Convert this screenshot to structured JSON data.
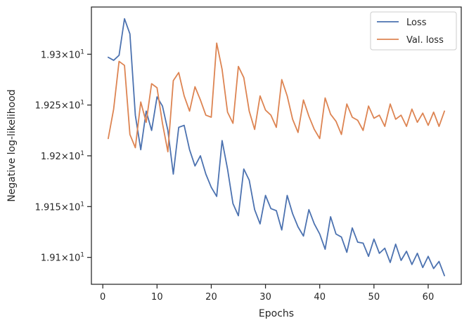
{
  "chart_data": {
    "type": "line",
    "xlabel": "Epochs",
    "ylabel": "Negative log-likelihood",
    "xlim": [
      -2.1,
      66.1
    ],
    "ylim": [
      19.0735,
      19.3465
    ],
    "x_ticks": [
      0,
      10,
      20,
      30,
      40,
      50,
      60
    ],
    "y_ticks": [
      {
        "value": 19.1,
        "mantissa": "1.91",
        "exp": "1"
      },
      {
        "value": 19.15,
        "mantissa": "1.915",
        "exp": "1"
      },
      {
        "value": 19.2,
        "mantissa": "1.92",
        "exp": "1"
      },
      {
        "value": 19.25,
        "mantissa": "1.925",
        "exp": "1"
      },
      {
        "value": 19.3,
        "mantissa": "1.93",
        "exp": "1"
      }
    ],
    "tick_times": "×",
    "tick_base": "10",
    "grid": false,
    "legend_position": "top-right",
    "x": [
      1,
      2,
      3,
      4,
      5,
      6,
      7,
      8,
      9,
      10,
      11,
      12,
      13,
      14,
      15,
      16,
      17,
      18,
      19,
      20,
      21,
      22,
      23,
      24,
      25,
      26,
      27,
      28,
      29,
      30,
      31,
      32,
      33,
      34,
      35,
      36,
      37,
      38,
      39,
      40,
      41,
      42,
      43,
      44,
      45,
      46,
      47,
      48,
      49,
      50,
      51,
      52,
      53,
      54,
      55,
      56,
      57,
      58,
      59,
      60,
      61,
      62,
      63
    ],
    "series": [
      {
        "name": "Loss",
        "color": "#4c72b0",
        "values": [
          19.297,
          19.294,
          19.299,
          19.335,
          19.32,
          19.24,
          19.206,
          19.244,
          19.225,
          19.258,
          19.249,
          19.225,
          19.182,
          19.228,
          19.23,
          19.206,
          19.19,
          19.2,
          19.182,
          19.169,
          19.16,
          19.215,
          19.187,
          19.153,
          19.141,
          19.187,
          19.176,
          19.147,
          19.133,
          19.161,
          19.148,
          19.146,
          19.127,
          19.161,
          19.143,
          19.13,
          19.121,
          19.147,
          19.133,
          19.123,
          19.108,
          19.14,
          19.123,
          19.12,
          19.105,
          19.129,
          19.115,
          19.114,
          19.101,
          19.118,
          19.104,
          19.109,
          19.095,
          19.113,
          19.097,
          19.106,
          19.093,
          19.104,
          19.09,
          19.101,
          19.089,
          19.096,
          19.082
        ]
      },
      {
        "name": "Val. loss",
        "color": "#dd8452",
        "values": [
          19.217,
          19.246,
          19.293,
          19.289,
          19.221,
          19.208,
          19.253,
          19.233,
          19.271,
          19.267,
          19.232,
          19.204,
          19.274,
          19.282,
          19.259,
          19.244,
          19.268,
          19.255,
          19.24,
          19.238,
          19.311,
          19.285,
          19.243,
          19.232,
          19.288,
          19.277,
          19.244,
          19.226,
          19.259,
          19.245,
          19.24,
          19.228,
          19.275,
          19.259,
          19.236,
          19.223,
          19.255,
          19.239,
          19.226,
          19.217,
          19.257,
          19.241,
          19.234,
          19.221,
          19.251,
          19.238,
          19.235,
          19.225,
          19.249,
          19.237,
          19.24,
          19.229,
          19.251,
          19.236,
          19.24,
          19.229,
          19.246,
          19.233,
          19.242,
          19.23,
          19.243,
          19.229,
          19.244
        ]
      }
    ]
  }
}
